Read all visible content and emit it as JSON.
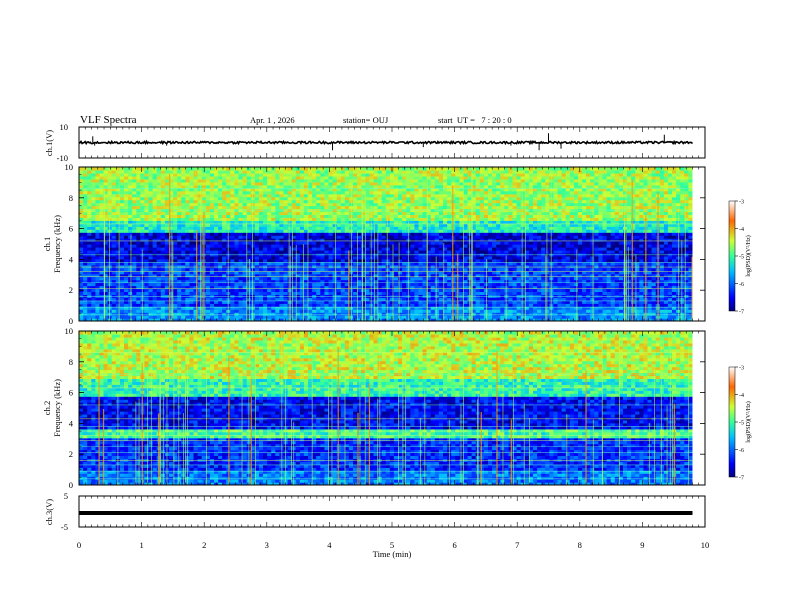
{
  "header": {
    "title": "VLF Spectra",
    "date": "Apr. 1 , 2026",
    "station": "station= OUJ",
    "start_ut": "start  UT =   7 : 20 : 0"
  },
  "chart_data": [
    {
      "type": "line",
      "name": "ch1-waveform",
      "ylabel": "ch.1(V)",
      "yticks": [
        "10",
        "-10"
      ],
      "ylim": [
        -10,
        10
      ],
      "baseline": 0,
      "spikes": [
        {
          "t": 0.22,
          "v": 4
        },
        {
          "t": 0.25,
          "v": -2
        },
        {
          "t": 1.4,
          "v": -2
        },
        {
          "t": 4.05,
          "v": -5
        },
        {
          "t": 5.5,
          "v": -3
        },
        {
          "t": 7.5,
          "v": 6
        },
        {
          "t": 7.35,
          "v": -5
        },
        {
          "t": 7.7,
          "v": -4
        },
        {
          "t": 9.35,
          "v": 5
        },
        {
          "t": 6.9,
          "v": -2
        }
      ]
    },
    {
      "type": "heatmap",
      "name": "ch1-spectrogram",
      "ylabel": "ch.1\nFrequency (kHz)",
      "ylabel_lines": [
        "ch.1",
        "Frequency (kHz)"
      ],
      "yticks": [
        "0",
        "2",
        "4",
        "6",
        "8",
        "10"
      ],
      "ylim": [
        0,
        10
      ],
      "xlim": [
        0,
        9.8
      ],
      "colorbar": {
        "label": "log(PSD)(V²/Hz)",
        "ticks": [
          "-3",
          "-4",
          "-5",
          "-6",
          "-7"
        ],
        "range": [
          -7,
          -3
        ]
      },
      "bands": [
        {
          "f": [
            0,
            1.0
          ],
          "level": -5.8
        },
        {
          "f": [
            1.0,
            3.8
          ],
          "level": -6.2
        },
        {
          "f": [
            3.8,
            5.8
          ],
          "level": -6.6
        },
        {
          "f": [
            5.8,
            6.5
          ],
          "level": -5.2
        },
        {
          "f": [
            6.5,
            10
          ],
          "level": -4.6
        }
      ]
    },
    {
      "type": "heatmap",
      "name": "ch2-spectrogram",
      "ylabel": "ch.2\nFrequency (kHz)",
      "ylabel_lines": [
        "ch.2",
        "Frequency (kHz)"
      ],
      "yticks": [
        "0",
        "2",
        "4",
        "6",
        "8",
        "10"
      ],
      "ylim": [
        0,
        10
      ],
      "xlim": [
        0,
        9.8
      ],
      "colorbar": {
        "label": "log(PSD)(V²/Hz)",
        "ticks": [
          "-3",
          "-4",
          "-5",
          "-6",
          "-7"
        ],
        "range": [
          -7,
          -3
        ]
      },
      "bands": [
        {
          "f": [
            0,
            1.0
          ],
          "level": -5.9
        },
        {
          "f": [
            1.0,
            3.0
          ],
          "level": -6.3
        },
        {
          "f": [
            3.0,
            3.6
          ],
          "level": -5.0
        },
        {
          "f": [
            3.6,
            5.8
          ],
          "level": -6.5
        },
        {
          "f": [
            5.8,
            7.0
          ],
          "level": -5.1
        },
        {
          "f": [
            7.0,
            10
          ],
          "level": -4.5
        }
      ]
    },
    {
      "type": "line",
      "name": "ch3-waveform",
      "ylabel": "ch.3(V)",
      "yticks": [
        "5",
        "-5"
      ],
      "ylim": [
        -5,
        5
      ],
      "baseline": -0.5
    }
  ],
  "xaxis": {
    "label": "Time (min)",
    "ticks": [
      "0",
      "1",
      "2",
      "3",
      "4",
      "5",
      "6",
      "7",
      "8",
      "9",
      "10"
    ],
    "xlim": [
      0,
      10
    ]
  }
}
